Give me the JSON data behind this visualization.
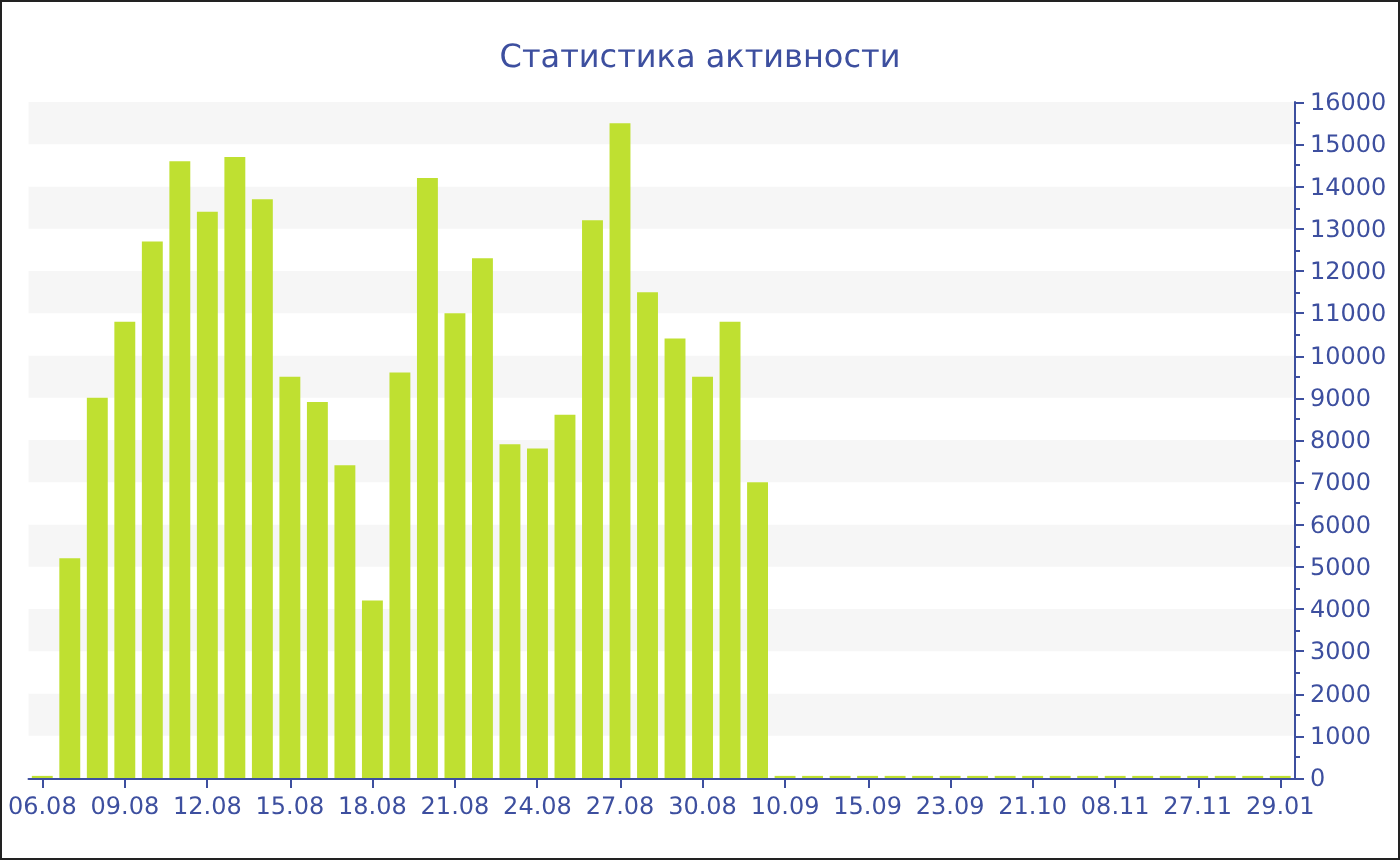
{
  "chart_data": {
    "type": "bar",
    "title": "Статистика активности",
    "categories": [
      "06.08",
      null,
      null,
      "09.08",
      null,
      null,
      "12.08",
      null,
      null,
      "15.08",
      null,
      null,
      "18.08",
      null,
      null,
      "21.08",
      null,
      null,
      "24.08",
      null,
      null,
      "27.08",
      null,
      null,
      "30.08",
      null,
      null,
      "10.09",
      null,
      null,
      "15.09",
      null,
      null,
      "23.09",
      null,
      null,
      "21.10",
      null,
      null,
      "08.11",
      null,
      null,
      "27.11",
      null,
      null,
      "29.01"
    ],
    "values": [
      50,
      5200,
      9000,
      10800,
      12700,
      14600,
      13400,
      14700,
      13700,
      9500,
      8900,
      7400,
      4200,
      9600,
      14200,
      11000,
      12300,
      7900,
      7800,
      8600,
      13200,
      15500,
      11500,
      10400,
      9500,
      10800,
      7000,
      50,
      50,
      50,
      50,
      50,
      50,
      50,
      50,
      50,
      50,
      50,
      50,
      50,
      50,
      50,
      50,
      50,
      50,
      50
    ],
    "color": "#bfe031",
    "ylim": [
      0,
      16000
    ],
    "yticks": [
      0,
      1000,
      2000,
      3000,
      4000,
      5000,
      6000,
      7000,
      8000,
      9000,
      10000,
      11000,
      12000,
      13000,
      14000,
      15000,
      16000
    ]
  }
}
